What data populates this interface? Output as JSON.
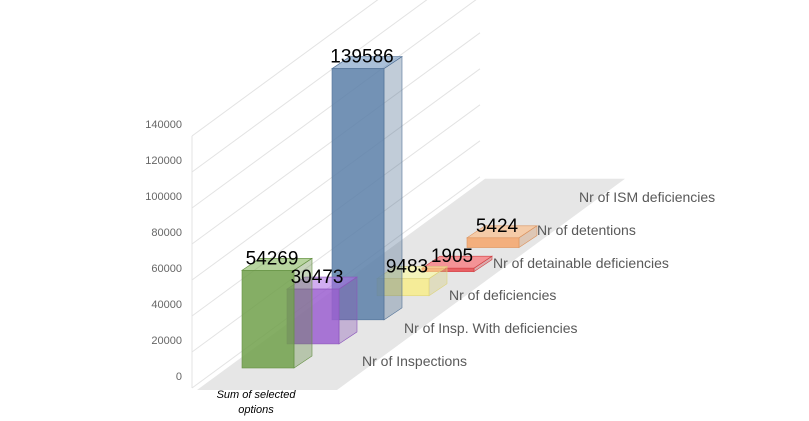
{
  "chart_data": {
    "type": "bar",
    "subtype": "3d-column",
    "categories": [
      "Sum of selected options"
    ],
    "series": [
      {
        "name": "Nr of Inspections",
        "values": [
          54269
        ],
        "color": "#70a04a"
      },
      {
        "name": "Nr of Insp. With deficiencies",
        "values": [
          30473
        ],
        "color": "#9b5fd0"
      },
      {
        "name": "Nr of deficiencies",
        "values": [
          139586
        ],
        "color": "#5b7fa8"
      },
      {
        "name": "Nr of detainable deficiencies",
        "values": [
          9483
        ],
        "color": "#f7ec8a"
      },
      {
        "name": "Nr of detentions",
        "values": [
          1905
        ],
        "color": "#e8484c"
      },
      {
        "name": "Nr of ISM deficiencies",
        "values": [
          5424
        ],
        "color": "#f4a46a"
      }
    ],
    "y_ticks": [
      "0",
      "20000",
      "40000",
      "60000",
      "80000",
      "100000",
      "120000",
      "140000"
    ],
    "ylim": [
      0,
      140000
    ],
    "title": "",
    "xlabel": "",
    "ylabel": "",
    "grid": true,
    "legend": "none"
  }
}
